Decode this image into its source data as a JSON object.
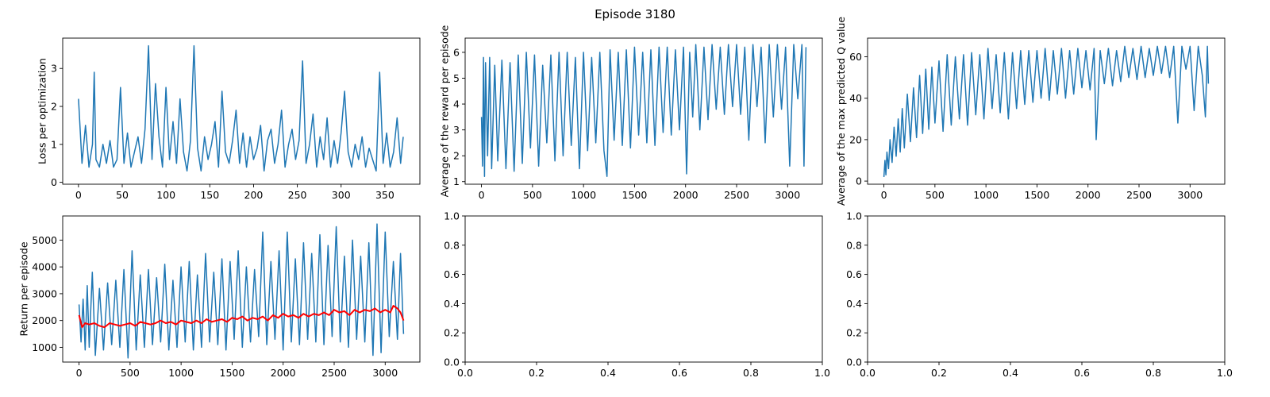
{
  "figure": {
    "suptitle": "Episode 3180",
    "colors": {
      "line": "#1f77b4",
      "mean": "#ff0000",
      "axes": "#000000",
      "background": "#ffffff"
    }
  },
  "chart_data": [
    {
      "id": "loss",
      "type": "line",
      "title": "",
      "xlabel": "",
      "ylabel": "Loss per optimization",
      "xlim": [
        -18,
        390
      ],
      "ylim": [
        -0.05,
        3.8
      ],
      "xticks": [
        0,
        50,
        100,
        150,
        200,
        250,
        300,
        350
      ],
      "yticks": [
        0,
        1,
        2,
        3
      ],
      "grid": false,
      "series": [
        {
          "color": "#1f77b4",
          "x": [
            0,
            4,
            8,
            12,
            16,
            18,
            20,
            24,
            28,
            32,
            36,
            40,
            44,
            48,
            52,
            56,
            60,
            64,
            68,
            72,
            76,
            80,
            84,
            88,
            92,
            96,
            100,
            104,
            108,
            112,
            116,
            120,
            124,
            128,
            132,
            136,
            140,
            144,
            148,
            152,
            156,
            160,
            164,
            168,
            172,
            176,
            180,
            184,
            188,
            192,
            196,
            200,
            204,
            208,
            212,
            216,
            220,
            224,
            228,
            232,
            236,
            240,
            244,
            248,
            252,
            256,
            260,
            264,
            268,
            272,
            276,
            280,
            284,
            288,
            292,
            296,
            300,
            304,
            308,
            312,
            316,
            320,
            324,
            328,
            332,
            336,
            340,
            344,
            348,
            352,
            356,
            360,
            364,
            368,
            371
          ],
          "y": [
            2.2,
            0.5,
            1.5,
            0.4,
            1.0,
            2.9,
            0.6,
            0.4,
            1.0,
            0.5,
            1.1,
            0.4,
            0.6,
            2.5,
            0.5,
            1.3,
            0.4,
            0.8,
            1.2,
            0.5,
            1.4,
            3.6,
            0.6,
            2.6,
            1.2,
            0.4,
            2.5,
            0.6,
            1.6,
            0.5,
            2.2,
            0.8,
            0.3,
            1.1,
            3.6,
            0.9,
            0.3,
            1.2,
            0.6,
            1.0,
            1.6,
            0.4,
            2.4,
            0.8,
            0.5,
            1.1,
            1.9,
            0.5,
            1.3,
            0.4,
            1.2,
            0.6,
            0.9,
            1.5,
            0.3,
            1.1,
            1.4,
            0.5,
            1.0,
            1.9,
            0.4,
            1.0,
            1.4,
            0.6,
            1.1,
            3.2,
            0.5,
            1.0,
            1.8,
            0.4,
            1.2,
            0.6,
            1.7,
            0.4,
            1.1,
            0.5,
            1.3,
            2.4,
            0.8,
            0.4,
            1.0,
            0.6,
            1.2,
            0.4,
            0.9,
            0.6,
            0.3,
            2.9,
            0.5,
            1.3,
            0.4,
            0.8,
            1.7,
            0.5,
            1.2
          ]
        }
      ]
    },
    {
      "id": "avg-reward",
      "type": "line",
      "title": "",
      "xlabel": "",
      "ylabel": "Average of the reward per episode",
      "xlim": [
        -160,
        3340
      ],
      "ylim": [
        0.9,
        6.55
      ],
      "xticks": [
        0,
        500,
        1000,
        1500,
        2000,
        2500,
        3000
      ],
      "yticks": [
        1,
        2,
        3,
        4,
        5,
        6
      ],
      "grid": false,
      "series": [
        {
          "color": "#1f77b4",
          "x": [
            0,
            10,
            20,
            30,
            40,
            60,
            80,
            100,
            130,
            160,
            200,
            240,
            280,
            320,
            360,
            400,
            440,
            480,
            520,
            560,
            600,
            640,
            680,
            720,
            760,
            800,
            840,
            880,
            920,
            960,
            1000,
            1040,
            1080,
            1120,
            1160,
            1200,
            1230,
            1260,
            1300,
            1340,
            1380,
            1420,
            1460,
            1500,
            1540,
            1580,
            1620,
            1660,
            1700,
            1740,
            1780,
            1820,
            1860,
            1900,
            1940,
            1980,
            2010,
            2040,
            2070,
            2100,
            2140,
            2180,
            2220,
            2260,
            2300,
            2340,
            2380,
            2420,
            2460,
            2500,
            2540,
            2580,
            2620,
            2660,
            2700,
            2740,
            2780,
            2820,
            2860,
            2900,
            2940,
            2980,
            3020,
            3060,
            3100,
            3140,
            3160,
            3180
          ],
          "y": [
            3.5,
            1.6,
            5.8,
            1.2,
            5.6,
            2.0,
            5.8,
            1.5,
            5.5,
            1.8,
            5.7,
            1.5,
            5.6,
            1.4,
            5.9,
            1.7,
            6.0,
            2.3,
            5.9,
            1.6,
            5.5,
            2.5,
            5.9,
            1.8,
            6.0,
            2.0,
            6.0,
            2.4,
            5.8,
            1.5,
            6.0,
            2.2,
            5.8,
            2.5,
            6.0,
            2.2,
            1.2,
            6.1,
            2.6,
            6.0,
            2.4,
            6.1,
            2.3,
            6.2,
            2.8,
            6.0,
            2.5,
            6.1,
            2.4,
            6.2,
            2.9,
            6.2,
            2.8,
            6.1,
            3.0,
            6.2,
            1.3,
            6.0,
            3.5,
            6.3,
            3.0,
            6.2,
            3.4,
            6.3,
            3.8,
            6.2,
            3.6,
            6.3,
            3.9,
            6.3,
            3.6,
            6.2,
            2.6,
            6.3,
            3.9,
            6.2,
            2.5,
            6.3,
            3.5,
            6.3,
            3.8,
            6.2,
            1.6,
            6.3,
            4.2,
            6.3,
            1.6,
            6.2
          ]
        }
      ]
    },
    {
      "id": "max-q",
      "type": "line",
      "title": "",
      "xlabel": "",
      "ylabel": "Average of the max predicted Q value",
      "xlim": [
        -160,
        3340
      ],
      "ylim": [
        -1.5,
        69
      ],
      "xticks": [
        0,
        500,
        1000,
        1500,
        2000,
        2500,
        3000
      ],
      "yticks": [
        0,
        20,
        40,
        60
      ],
      "grid": false,
      "series": [
        {
          "color": "#1f77b4",
          "x": [
            0,
            10,
            20,
            30,
            45,
            60,
            80,
            100,
            120,
            140,
            160,
            180,
            200,
            230,
            260,
            290,
            320,
            350,
            380,
            410,
            440,
            470,
            500,
            540,
            580,
            620,
            660,
            700,
            740,
            780,
            820,
            860,
            900,
            940,
            980,
            1020,
            1060,
            1100,
            1140,
            1180,
            1220,
            1260,
            1300,
            1340,
            1380,
            1420,
            1460,
            1500,
            1540,
            1580,
            1620,
            1660,
            1700,
            1740,
            1780,
            1820,
            1860,
            1900,
            1940,
            1980,
            2020,
            2060,
            2080,
            2120,
            2160,
            2200,
            2240,
            2280,
            2320,
            2360,
            2400,
            2440,
            2480,
            2520,
            2560,
            2600,
            2640,
            2680,
            2720,
            2760,
            2800,
            2840,
            2880,
            2920,
            2960,
            3000,
            3040,
            3080,
            3120,
            3150,
            3170,
            3180
          ],
          "y": [
            2,
            10,
            3,
            14,
            6,
            20,
            9,
            26,
            12,
            30,
            14,
            35,
            16,
            42,
            19,
            45,
            21,
            51,
            23,
            54,
            25,
            55,
            28,
            58,
            24,
            61,
            27,
            60,
            30,
            61,
            27,
            62,
            32,
            61,
            30,
            64,
            35,
            61,
            33,
            62,
            30,
            62,
            35,
            63,
            37,
            63,
            38,
            63,
            40,
            64,
            39,
            63,
            42,
            64,
            40,
            63,
            42,
            64,
            45,
            63,
            44,
            64,
            20,
            63,
            47,
            64,
            46,
            63,
            48,
            65,
            50,
            64,
            49,
            65,
            50,
            64,
            51,
            65,
            52,
            65,
            50,
            65,
            28,
            65,
            54,
            65,
            34,
            65,
            51,
            31,
            65,
            47
          ]
        }
      ]
    },
    {
      "id": "return",
      "type": "line",
      "title": "",
      "xlabel": "",
      "ylabel": "Return per episode",
      "xlim": [
        -160,
        3340
      ],
      "ylim": [
        450,
        5900
      ],
      "xticks": [
        0,
        500,
        1000,
        1500,
        2000,
        2500,
        3000
      ],
      "yticks": [
        1000,
        2000,
        3000,
        4000,
        5000
      ],
      "grid": false,
      "series": [
        {
          "color": "#1f77b4",
          "x": [
            0,
            20,
            40,
            60,
            80,
            100,
            130,
            160,
            200,
            240,
            280,
            320,
            360,
            400,
            440,
            480,
            520,
            560,
            600,
            640,
            680,
            720,
            760,
            800,
            840,
            880,
            920,
            960,
            1000,
            1040,
            1080,
            1120,
            1160,
            1200,
            1240,
            1280,
            1320,
            1360,
            1400,
            1440,
            1480,
            1520,
            1560,
            1600,
            1640,
            1680,
            1720,
            1760,
            1800,
            1840,
            1880,
            1920,
            1960,
            2000,
            2040,
            2080,
            2120,
            2160,
            2200,
            2240,
            2280,
            2320,
            2360,
            2400,
            2440,
            2480,
            2520,
            2560,
            2600,
            2640,
            2680,
            2720,
            2760,
            2800,
            2840,
            2880,
            2920,
            2960,
            3000,
            3040,
            3080,
            3120,
            3150,
            3180
          ],
          "y": [
            2600,
            1200,
            2800,
            900,
            3300,
            1000,
            3800,
            700,
            3200,
            900,
            3400,
            1100,
            3500,
            1000,
            3900,
            600,
            4600,
            900,
            3700,
            1000,
            3900,
            1100,
            3600,
            1200,
            4100,
            900,
            3500,
            1000,
            4000,
            1200,
            4200,
            900,
            3700,
            1000,
            4500,
            1200,
            3800,
            1100,
            4300,
            900,
            4200,
            1300,
            4600,
            1000,
            4000,
            1200,
            3900,
            1400,
            5300,
            1100,
            4200,
            1300,
            4600,
            900,
            5300,
            1200,
            4300,
            1100,
            4900,
            1300,
            4500,
            1200,
            5200,
            1100,
            4800,
            1400,
            5500,
            1200,
            4400,
            1000,
            5000,
            1300,
            4400,
            1200,
            4900,
            700,
            5600,
            800,
            5300,
            1400,
            4200,
            1300,
            4500,
            1500
          ]
        },
        {
          "color": "#ff0000",
          "x": [
            0,
            30,
            60,
            100,
            150,
            200,
            250,
            300,
            350,
            400,
            450,
            500,
            550,
            600,
            650,
            700,
            750,
            800,
            850,
            900,
            950,
            1000,
            1050,
            1100,
            1150,
            1200,
            1250,
            1300,
            1350,
            1400,
            1450,
            1500,
            1550,
            1600,
            1650,
            1700,
            1750,
            1800,
            1850,
            1900,
            1950,
            2000,
            2050,
            2100,
            2150,
            2200,
            2250,
            2300,
            2350,
            2400,
            2450,
            2500,
            2550,
            2600,
            2650,
            2700,
            2750,
            2800,
            2850,
            2900,
            2950,
            3000,
            3050,
            3080,
            3120,
            3150,
            3180
          ],
          "y": [
            2200,
            1750,
            1900,
            1850,
            1900,
            1800,
            1750,
            1900,
            1850,
            1800,
            1850,
            1900,
            1800,
            1950,
            1900,
            1850,
            1900,
            2000,
            1900,
            1950,
            1850,
            2000,
            1950,
            1900,
            2000,
            1900,
            2050,
            1950,
            2000,
            2050,
            1950,
            2100,
            2050,
            2150,
            2000,
            2100,
            2050,
            2150,
            2000,
            2200,
            2100,
            2250,
            2150,
            2200,
            2100,
            2250,
            2150,
            2250,
            2200,
            2300,
            2200,
            2400,
            2300,
            2350,
            2200,
            2400,
            2300,
            2400,
            2350,
            2450,
            2300,
            2400,
            2300,
            2550,
            2450,
            2300,
            2000
          ]
        }
      ]
    },
    {
      "id": "empty-1",
      "type": "line",
      "title": "",
      "xlabel": "",
      "ylabel": "",
      "xlim": [
        0,
        1
      ],
      "ylim": [
        0,
        1
      ],
      "xticks": [
        0.0,
        0.2,
        0.4,
        0.6,
        0.8,
        1.0
      ],
      "yticks": [
        0.0,
        0.2,
        0.4,
        0.6,
        0.8,
        1.0
      ],
      "xticklabels": [
        "0.0",
        "0.2",
        "0.4",
        "0.6",
        "0.8",
        "1.0"
      ],
      "yticklabels": [
        "0.0",
        "0.2",
        "0.4",
        "0.6",
        "0.8",
        "1.0"
      ],
      "grid": false,
      "series": []
    },
    {
      "id": "empty-2",
      "type": "line",
      "title": "",
      "xlabel": "",
      "ylabel": "",
      "xlim": [
        0,
        1
      ],
      "ylim": [
        0,
        1
      ],
      "xticks": [
        0.0,
        0.2,
        0.4,
        0.6,
        0.8,
        1.0
      ],
      "yticks": [
        0.0,
        0.2,
        0.4,
        0.6,
        0.8,
        1.0
      ],
      "xticklabels": [
        "0.0",
        "0.2",
        "0.4",
        "0.6",
        "0.8",
        "1.0"
      ],
      "yticklabels": [
        "0.0",
        "0.2",
        "0.4",
        "0.6",
        "0.8",
        "1.0"
      ],
      "grid": false,
      "series": []
    }
  ]
}
